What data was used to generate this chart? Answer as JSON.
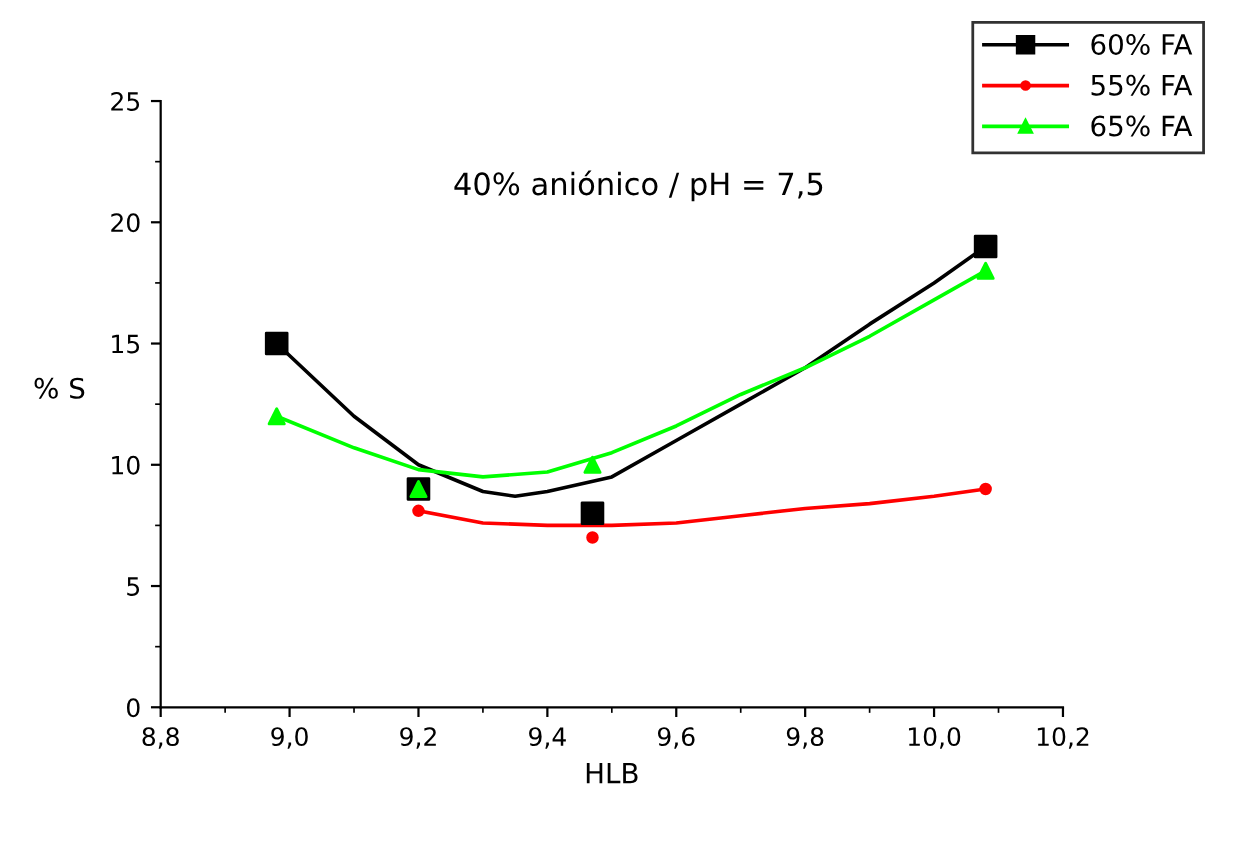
{
  "chart_data": {
    "type": "scatter",
    "xlabel": "HLB",
    "ylabel": "% S",
    "annotations": [
      "40% aniónico / pH = 7,5"
    ],
    "xlim": [
      8.8,
      10.2
    ],
    "xticks": [
      {
        "value": 8.8,
        "label": "8,8"
      },
      {
        "value": 9.0,
        "label": "9,0"
      },
      {
        "value": 9.2,
        "label": "9,2"
      },
      {
        "value": 9.4,
        "label": "9,4"
      },
      {
        "value": 9.6,
        "label": "9,6"
      },
      {
        "value": 9.8,
        "label": "9,8"
      },
      {
        "value": 10.0,
        "label": "10,0"
      },
      {
        "value": 10.2,
        "label": "10,2"
      }
    ],
    "ylim": [
      0,
      25
    ],
    "yticks": [
      0,
      5,
      10,
      15,
      20,
      25
    ],
    "grid": false,
    "legend": "top right",
    "series": [
      {
        "name": "60% FA",
        "marker": "square",
        "color": "#000000",
        "x": [
          8.98,
          9.2,
          9.47,
          10.08
        ],
        "values": [
          15,
          9,
          8,
          19
        ]
      },
      {
        "name": "55% FA",
        "marker": "circle",
        "color": "#ff0000",
        "x": [
          9.2,
          9.47,
          10.08
        ],
        "values": [
          8.1,
          7,
          9
        ]
      },
      {
        "name": "65% FA",
        "marker": "triangle",
        "color": "#00ff00",
        "x": [
          8.98,
          9.2,
          9.47,
          10.08
        ],
        "values": [
          12,
          9,
          10,
          18
        ]
      },
      {
        "type": "line",
        "color": "#000000",
        "x": [
          8.98,
          9.1,
          9.2,
          9.3,
          9.35,
          9.4,
          9.5,
          9.6,
          9.7,
          9.8,
          9.9,
          10.0,
          10.08
        ],
        "values": [
          15,
          12,
          10,
          8.9,
          8.7,
          8.9,
          9.5,
          11,
          12.5,
          14,
          15.8,
          17.5,
          19
        ]
      },
      {
        "type": "line",
        "color": "#ff0000",
        "x": [
          9.2,
          9.3,
          9.4,
          9.5,
          9.6,
          9.7,
          9.8,
          9.9,
          10.0,
          10.08
        ],
        "values": [
          8.1,
          7.6,
          7.5,
          7.5,
          7.6,
          7.9,
          8.2,
          8.4,
          8.7,
          9.0
        ]
      },
      {
        "type": "line",
        "color": "#00ff00",
        "x": [
          8.98,
          9.1,
          9.2,
          9.3,
          9.4,
          9.5,
          9.6,
          9.7,
          9.8,
          9.9,
          10.0,
          10.08
        ],
        "values": [
          12,
          10.7,
          9.8,
          9.5,
          9.7,
          10.5,
          11.6,
          12.9,
          14,
          15.3,
          16.8,
          18
        ]
      }
    ]
  }
}
